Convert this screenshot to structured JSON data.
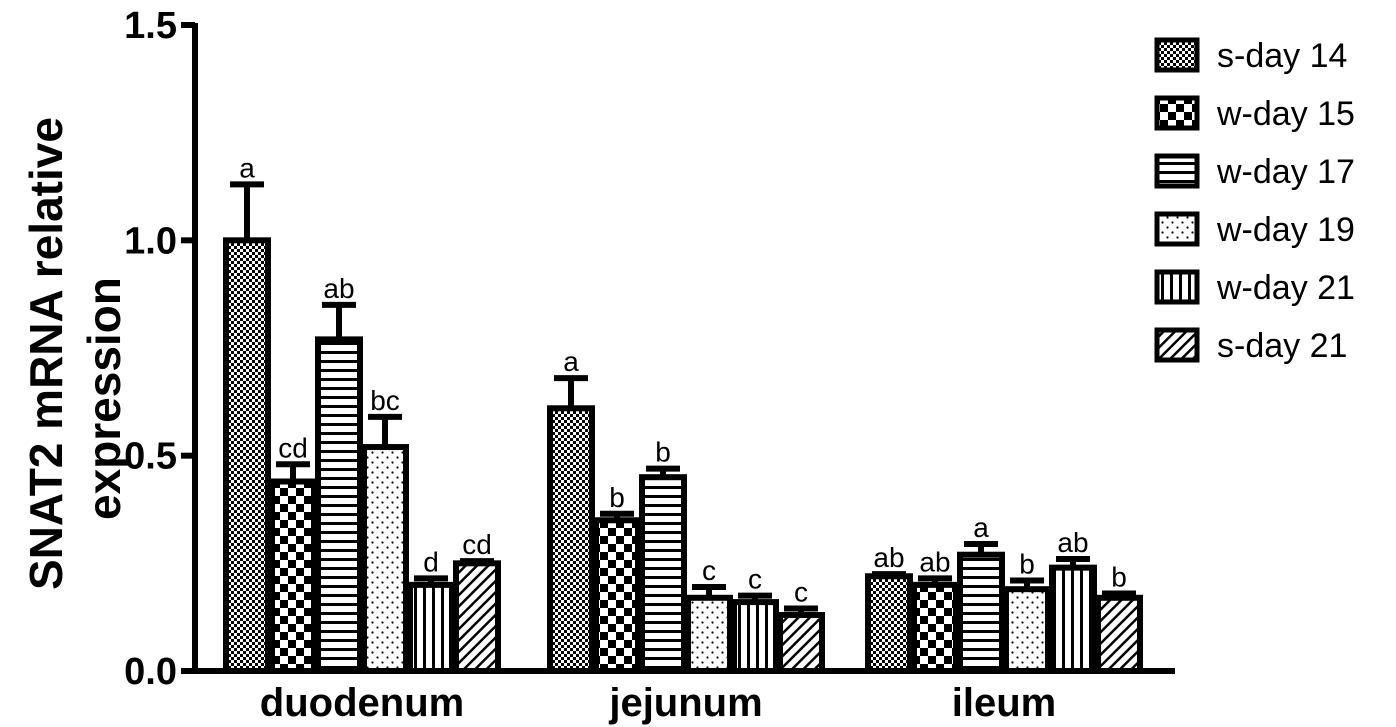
{
  "chart_data": {
    "type": "bar",
    "ylabel": "SNAT2 mRNA relative expression",
    "ylabel_lines": [
      "SNAT2 mRNA relative",
      "expression"
    ],
    "xlabel": "",
    "ylim": [
      0,
      1.5
    ],
    "yticks": [
      0.0,
      0.5,
      1.0,
      1.5
    ],
    "ytick_labels": [
      "0.0",
      "0.5",
      "1.0",
      "1.5"
    ],
    "categories": [
      "duodenum",
      "jejunum",
      "ileum"
    ],
    "legend_position": "top-right",
    "series": [
      {
        "name": "s-day 14",
        "pattern": "fine-checker",
        "values": [
          1.0,
          0.61,
          0.22
        ],
        "errors": [
          0.13,
          0.07,
          0.005
        ],
        "labels": [
          "a",
          "a",
          "ab"
        ]
      },
      {
        "name": "w-day 15",
        "pattern": "coarse-checker",
        "values": [
          0.44,
          0.35,
          0.2
        ],
        "errors": [
          0.04,
          0.015,
          0.015
        ],
        "labels": [
          "cd",
          "b",
          "ab"
        ]
      },
      {
        "name": "w-day 17",
        "pattern": "horizontal-lines",
        "values": [
          0.77,
          0.45,
          0.27
        ],
        "errors": [
          0.08,
          0.02,
          0.025
        ],
        "labels": [
          "ab",
          "b",
          "a"
        ]
      },
      {
        "name": "w-day 19",
        "pattern": "dots",
        "values": [
          0.52,
          0.17,
          0.19
        ],
        "errors": [
          0.07,
          0.025,
          0.02
        ],
        "labels": [
          "bc",
          "c",
          "b"
        ]
      },
      {
        "name": "w-day 21",
        "pattern": "vertical-lines",
        "values": [
          0.2,
          0.16,
          0.24
        ],
        "errors": [
          0.015,
          0.015,
          0.02
        ],
        "labels": [
          "d",
          "c",
          "ab"
        ]
      },
      {
        "name": "s-day 21",
        "pattern": "diagonal-lines",
        "values": [
          0.25,
          0.13,
          0.17
        ],
        "errors": [
          0.005,
          0.015,
          0.01
        ],
        "labels": [
          "cd",
          "c",
          "b"
        ]
      }
    ]
  }
}
